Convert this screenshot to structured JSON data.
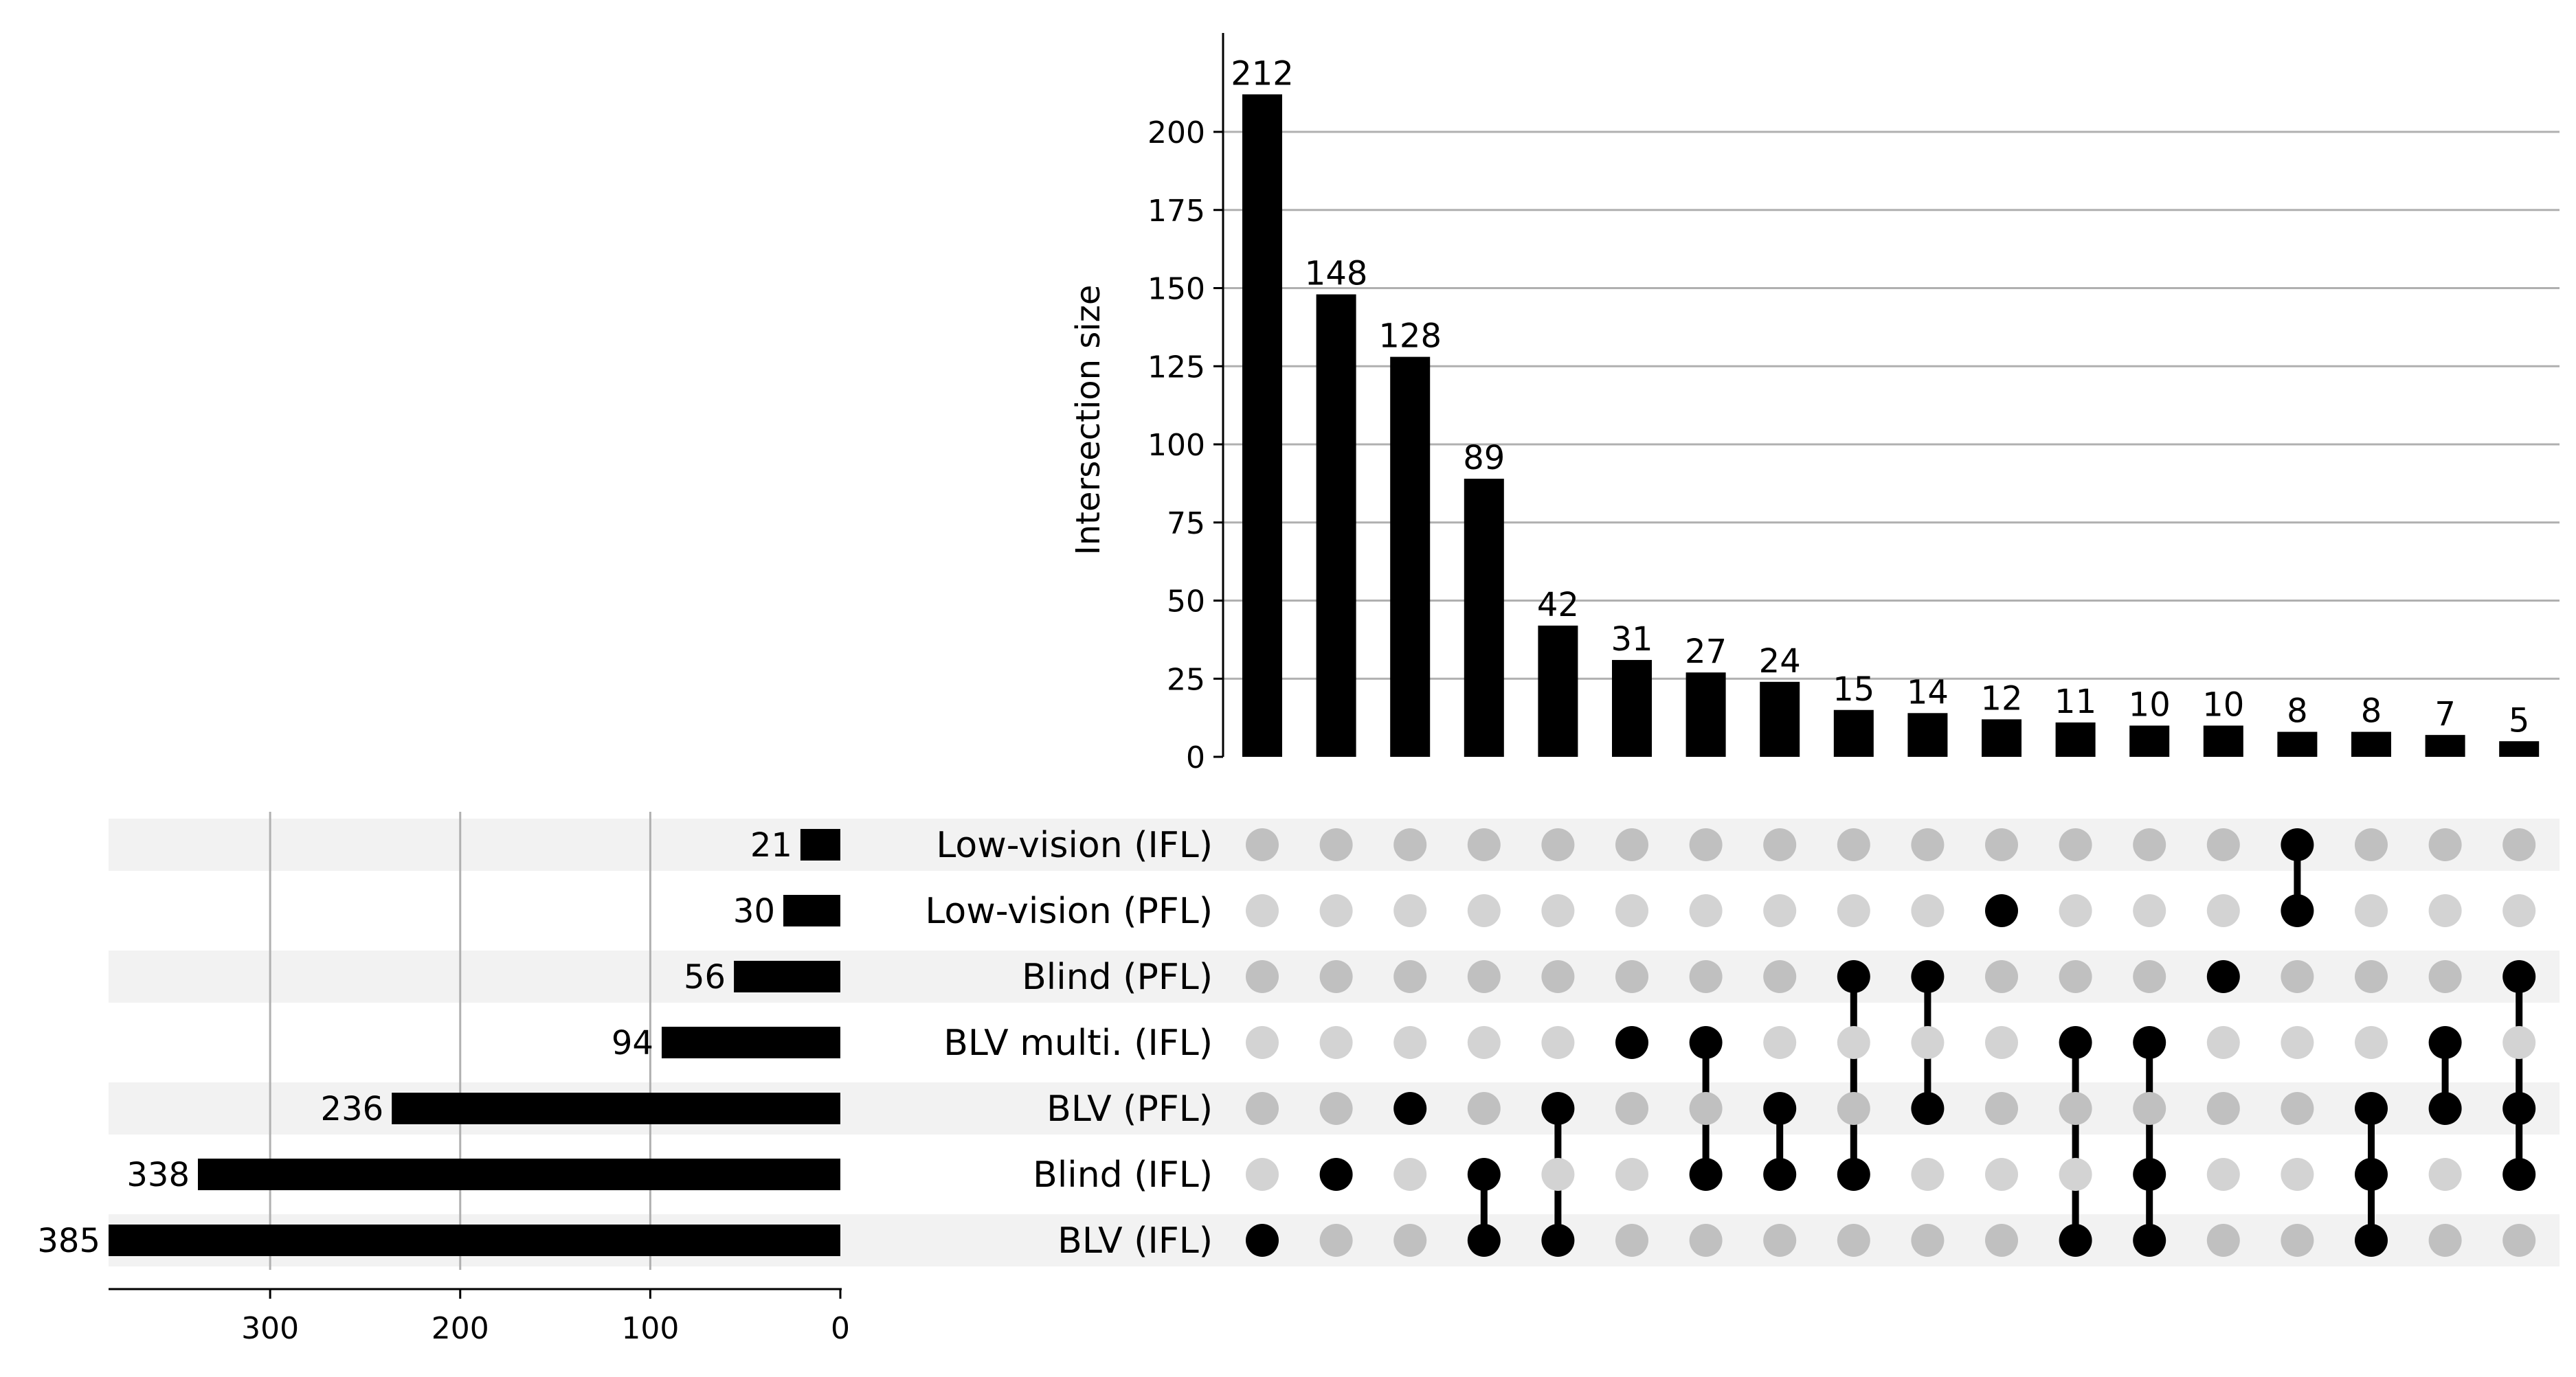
{
  "chart_data": {
    "type": "upset",
    "ylabel": "Intersection size",
    "ylim": [
      0,
      220
    ],
    "yticks": [
      0,
      25,
      50,
      75,
      100,
      125,
      150,
      175,
      200
    ],
    "set_size_ticks": [
      300,
      200,
      100,
      0
    ],
    "set_size_xlim": [
      0,
      385
    ],
    "sets": [
      {
        "name": "Low-vision (IFL)",
        "size": 21
      },
      {
        "name": "Low-vision (PFL)",
        "size": 30
      },
      {
        "name": "Blind (PFL)",
        "size": 56
      },
      {
        "name": "BLV multi. (IFL)",
        "size": 94
      },
      {
        "name": "BLV (PFL)",
        "size": 236
      },
      {
        "name": "Blind (IFL)",
        "size": 338
      },
      {
        "name": "BLV (IFL)",
        "size": 385
      }
    ],
    "intersections": [
      {
        "size": 212,
        "members": [
          "BLV (IFL)"
        ]
      },
      {
        "size": 148,
        "members": [
          "Blind (IFL)"
        ]
      },
      {
        "size": 128,
        "members": [
          "BLV (PFL)"
        ]
      },
      {
        "size": 89,
        "members": [
          "Blind (IFL)",
          "BLV (IFL)"
        ]
      },
      {
        "size": 42,
        "members": [
          "BLV (PFL)",
          "BLV (IFL)"
        ]
      },
      {
        "size": 31,
        "members": [
          "BLV multi. (IFL)"
        ]
      },
      {
        "size": 27,
        "members": [
          "BLV multi. (IFL)",
          "Blind (IFL)"
        ]
      },
      {
        "size": 24,
        "members": [
          "BLV (PFL)",
          "Blind (IFL)"
        ]
      },
      {
        "size": 15,
        "members": [
          "Blind (PFL)",
          "Blind (IFL)"
        ]
      },
      {
        "size": 14,
        "members": [
          "Blind (PFL)",
          "BLV (PFL)"
        ]
      },
      {
        "size": 12,
        "members": [
          "Low-vision (PFL)"
        ]
      },
      {
        "size": 11,
        "members": [
          "BLV multi. (IFL)",
          "BLV (IFL)"
        ]
      },
      {
        "size": 10,
        "members": [
          "BLV multi. (IFL)",
          "Blind (IFL)",
          "BLV (IFL)"
        ]
      },
      {
        "size": 10,
        "members": [
          "Blind (PFL)"
        ]
      },
      {
        "size": 8,
        "members": [
          "Low-vision (IFL)",
          "Low-vision (PFL)"
        ]
      },
      {
        "size": 8,
        "members": [
          "BLV (PFL)",
          "Blind (IFL)",
          "BLV (IFL)"
        ]
      },
      {
        "size": 7,
        "members": [
          "BLV multi. (IFL)",
          "BLV (PFL)"
        ]
      },
      {
        "size": 5,
        "members": [
          "Blind (PFL)",
          "BLV (PFL)",
          "Blind (IFL)"
        ]
      }
    ],
    "grid": true,
    "colors": {
      "bar": "#000000",
      "dot_active": "#000000",
      "dot_inactive_shaded": "#c0c0c0",
      "dot_inactive_plain": "#d3d3d3",
      "row_shade": "#f2f2f2",
      "grid": "#b0b0b0"
    }
  }
}
